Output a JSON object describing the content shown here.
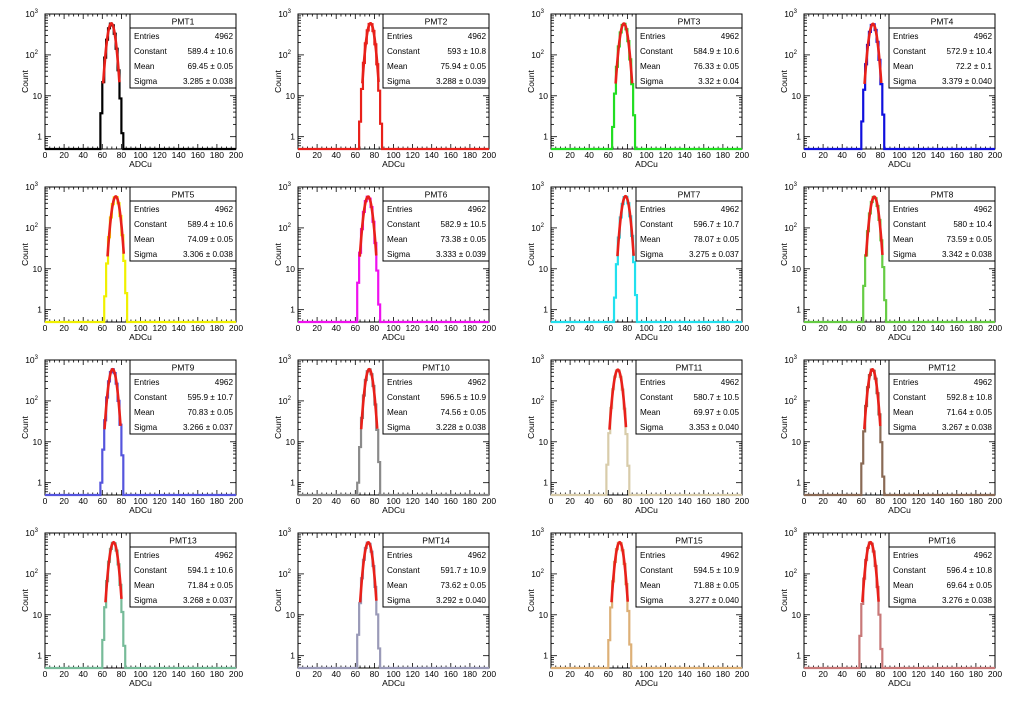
{
  "chart_data": {
    "type": "histogram-grid",
    "xlabel": "ADCu",
    "ylabel": "Count",
    "x_ticks": [
      0,
      20,
      40,
      60,
      80,
      100,
      120,
      140,
      160,
      180,
      200
    ],
    "y_ticks": [
      {
        "value": 1,
        "label": "1"
      },
      {
        "value": 10,
        "label": "10"
      },
      {
        "value": 100,
        "label": "10",
        "sup": "2"
      },
      {
        "value": 1000,
        "label": "10",
        "sup": "3"
      }
    ],
    "xlim": [
      0,
      200
    ],
    "ylim": [
      0.5,
      1000
    ],
    "y_scale": "log",
    "fit_color": "#e8201a",
    "stats_labels": {
      "entries": "Entries",
      "constant": "Constant",
      "mean": "Mean",
      "sigma": "Sigma"
    },
    "panels": [
      {
        "title": "PMT1",
        "color": "#000000",
        "entries": "4962",
        "constant": "589.4 ± 10.6",
        "mean": "69.45 ± 0.05",
        "sigma": "3.285 ± 0.038",
        "amp": 589.4,
        "mu": 69.45,
        "sd": 3.285
      },
      {
        "title": "PMT2",
        "color": "#e8201a",
        "entries": "4962",
        "constant": "593 ± 10.8",
        "mean": "75.94 ± 0.05",
        "sigma": "3.288 ± 0.039",
        "amp": 593.0,
        "mu": 75.94,
        "sd": 3.288
      },
      {
        "title": "PMT3",
        "color": "#22dd22",
        "entries": "4962",
        "constant": "584.9 ± 10.6",
        "mean": "76.33 ± 0.05",
        "sigma": "3.32 ± 0.04",
        "amp": 584.9,
        "mu": 76.33,
        "sd": 3.32
      },
      {
        "title": "PMT4",
        "color": "#1010dd",
        "entries": "4962",
        "constant": "572.9 ± 10.4",
        "mean": "72.2 ± 0.1",
        "sigma": "3.379 ± 0.040",
        "amp": 572.9,
        "mu": 72.2,
        "sd": 3.379
      },
      {
        "title": "PMT5",
        "color": "#f0f000",
        "entries": "4962",
        "constant": "589.4 ± 10.6",
        "mean": "74.09 ± 0.05",
        "sigma": "3.306 ± 0.038",
        "amp": 589.4,
        "mu": 74.09,
        "sd": 3.306
      },
      {
        "title": "PMT6",
        "color": "#ee11ee",
        "entries": "4962",
        "constant": "582.9 ± 10.5",
        "mean": "73.38 ± 0.05",
        "sigma": "3.333 ± 0.039",
        "amp": 582.9,
        "mu": 73.38,
        "sd": 3.333
      },
      {
        "title": "PMT7",
        "color": "#22e0ee",
        "entries": "4962",
        "constant": "596.7 ± 10.7",
        "mean": "78.07 ± 0.05",
        "sigma": "3.275 ± 0.037",
        "amp": 596.7,
        "mu": 78.07,
        "sd": 3.275
      },
      {
        "title": "PMT8",
        "color": "#66cc44",
        "entries": "4962",
        "constant": "580 ± 10.4",
        "mean": "73.59 ± 0.05",
        "sigma": "3.342 ± 0.038",
        "amp": 580.0,
        "mu": 73.59,
        "sd": 3.342
      },
      {
        "title": "PMT9",
        "color": "#5555dd",
        "entries": "4962",
        "constant": "595.9 ± 10.7",
        "mean": "70.83 ± 0.05",
        "sigma": "3.266 ± 0.037",
        "amp": 595.9,
        "mu": 70.83,
        "sd": 3.266
      },
      {
        "title": "PMT10",
        "color": "#8a8a8a",
        "entries": "4962",
        "constant": "596.5 ± 10.9",
        "mean": "74.56 ± 0.05",
        "sigma": "3.228 ± 0.038",
        "amp": 596.5,
        "mu": 74.56,
        "sd": 3.228
      },
      {
        "title": "PMT11",
        "color": "#d8ccaa",
        "entries": "4962",
        "constant": "580.7 ± 10.5",
        "mean": "69.97 ± 0.05",
        "sigma": "3.353 ± 0.040",
        "amp": 580.7,
        "mu": 69.97,
        "sd": 3.353
      },
      {
        "title": "PMT12",
        "color": "#8a6a55",
        "entries": "4962",
        "constant": "592.8 ± 10.8",
        "mean": "71.64 ± 0.05",
        "sigma": "3.267 ± 0.038",
        "amp": 592.8,
        "mu": 71.64,
        "sd": 3.267
      },
      {
        "title": "PMT13",
        "color": "#77bb99",
        "entries": "4962",
        "constant": "594.1 ± 10.6",
        "mean": "71.84 ± 0.05",
        "sigma": "3.268 ± 0.037",
        "amp": 594.1,
        "mu": 71.84,
        "sd": 3.268
      },
      {
        "title": "PMT14",
        "color": "#9a9ab8",
        "entries": "4962",
        "constant": "591.7 ± 10.9",
        "mean": "73.62 ± 0.05",
        "sigma": "3.292 ± 0.040",
        "amp": 591.7,
        "mu": 73.62,
        "sd": 3.292
      },
      {
        "title": "PMT15",
        "color": "#ddb077",
        "entries": "4962",
        "constant": "594.5 ± 10.9",
        "mean": "71.88 ± 0.05",
        "sigma": "3.277 ± 0.040",
        "amp": 594.5,
        "mu": 71.88,
        "sd": 3.277
      },
      {
        "title": "PMT16",
        "color": "#c87878",
        "entries": "4962",
        "constant": "596.4 ± 10.8",
        "mean": "69.64 ± 0.05",
        "sigma": "3.276 ± 0.038",
        "amp": 596.4,
        "mu": 69.64,
        "sd": 3.276
      }
    ]
  }
}
